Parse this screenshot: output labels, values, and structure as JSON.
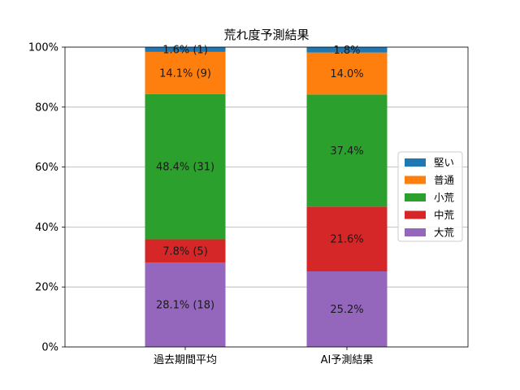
{
  "chart_data": {
    "type": "bar",
    "stacked": true,
    "title": "荒れ度予測結果",
    "xlabel": "",
    "ylabel": "",
    "categories": [
      "過去期間平均",
      "AI予測結果"
    ],
    "ylim": [
      0,
      100
    ],
    "y_ticks": [
      "0%",
      "20%",
      "40%",
      "60%",
      "80%",
      "100%"
    ],
    "grid": "horizontal",
    "legend_position": "center-right",
    "series": [
      {
        "name": "大荒",
        "color": "#9467bd",
        "values": [
          28.1,
          25.2
        ],
        "labels": [
          "28.1% (18)",
          "25.2%"
        ]
      },
      {
        "name": "中荒",
        "color": "#d62728",
        "values": [
          7.8,
          21.6
        ],
        "labels": [
          "7.8% (5)",
          "21.6%"
        ]
      },
      {
        "name": "小荒",
        "color": "#2ca02c",
        "values": [
          48.4,
          37.4
        ],
        "labels": [
          "48.4% (31)",
          "37.4%"
        ]
      },
      {
        "name": "普通",
        "color": "#ff7f0e",
        "values": [
          14.1,
          14.0
        ],
        "labels": [
          "14.1% (9)",
          "14.0%"
        ]
      },
      {
        "name": "堅い",
        "color": "#1f77b4",
        "values": [
          1.6,
          1.8
        ],
        "labels": [
          "1.6% (1)",
          "1.8%"
        ]
      }
    ],
    "legend_order": [
      "堅い",
      "普通",
      "小荒",
      "中荒",
      "大荒"
    ]
  }
}
